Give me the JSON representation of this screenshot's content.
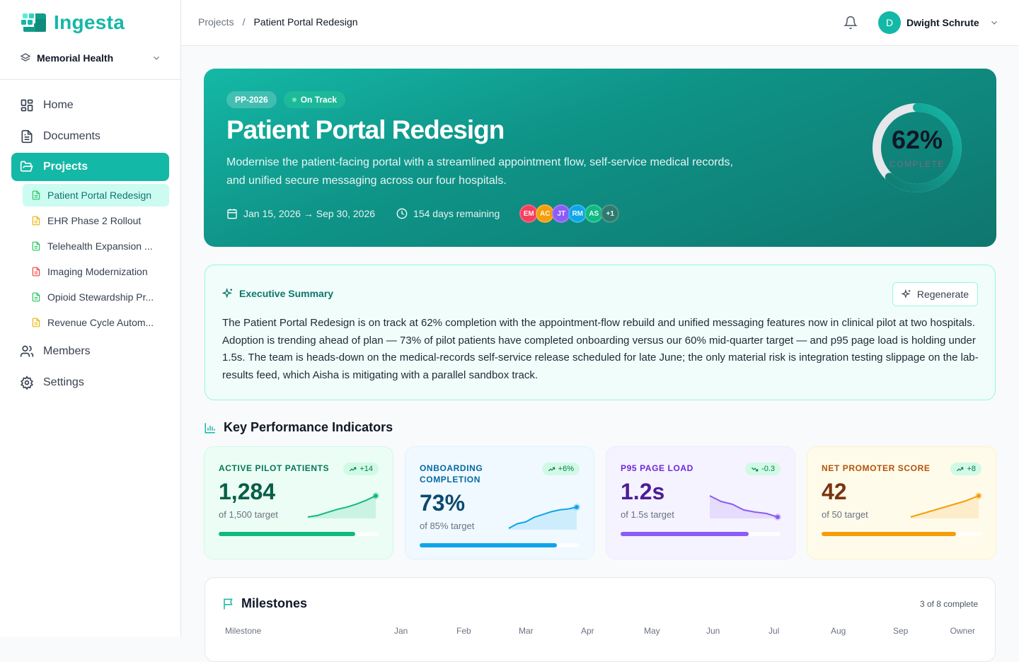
{
  "app": {
    "name": "Ingesta",
    "org": "Memorial Health"
  },
  "nav": {
    "home": "Home",
    "documents": "Documents",
    "projects": "Projects",
    "members": "Members",
    "settings": "Settings",
    "projects_list": [
      {
        "label": "Patient Portal Redesign",
        "color": "#22c55e",
        "active": true
      },
      {
        "label": "EHR Phase 2 Rollout",
        "color": "#eab308"
      },
      {
        "label": "Telehealth Expansion ...",
        "color": "#22c55e"
      },
      {
        "label": "Imaging Modernization",
        "color": "#ef4444"
      },
      {
        "label": "Opioid Stewardship Pr...",
        "color": "#22c55e"
      },
      {
        "label": "Revenue Cycle Autom...",
        "color": "#eab308"
      }
    ]
  },
  "breadcrumb": {
    "root": "Projects",
    "sep": "/",
    "current": "Patient Portal Redesign"
  },
  "user": {
    "initial": "D",
    "name": "Dwight Schrute"
  },
  "hero": {
    "code": "PP-2026",
    "status": "On Track",
    "title": "Patient Portal Redesign",
    "description": "Modernise the patient-facing portal with a streamlined appointment flow, self-service medical records, and unified secure messaging across our four hospitals.",
    "dates": "Jan 15, 2026 → Sep 30, 2026",
    "remaining": "154 days remaining",
    "progress": 62,
    "progress_label": "62%",
    "complete_label": "COMPLETE",
    "members": [
      {
        "i": "EM",
        "c": "#f43f5e"
      },
      {
        "i": "AC",
        "c": "#f59e0b"
      },
      {
        "i": "JT",
        "c": "#8b5cf6"
      },
      {
        "i": "RM",
        "c": "#0ea5e9"
      },
      {
        "i": "AS",
        "c": "#10b981"
      },
      {
        "i": "+1",
        "c": "#2f7a6e"
      }
    ]
  },
  "summary": {
    "title": "Executive Summary",
    "regenerate": "Regenerate",
    "text": "The Patient Portal Redesign is on track at 62% completion with the appointment-flow rebuild and unified messaging features now in clinical pilot at two hospitals. Adoption is trending ahead of plan — 73% of pilot patients have completed onboarding versus our 60% mid-quarter target — and p95 page load is holding under 1.5s. The team is heads-down on the medical-records self-service release scheduled for late June; the only material risk is integration testing slippage on the lab-results feed, which Aisha is mitigating with a parallel sandbox track."
  },
  "kpi_title": "Key Performance Indicators",
  "kpis": [
    {
      "label": "ACTIVE PILOT PATIENTS",
      "delta": "+14",
      "trend": "up",
      "value": "1,284",
      "target": "of 1,500 target",
      "progress": 0.856,
      "bg": "#ecfdf5",
      "border": "#d1fae5",
      "fg": "#065f46",
      "lc": "#047857",
      "accent": "#10b981",
      "spark": [
        2,
        4,
        8,
        12,
        15,
        19,
        24,
        30
      ]
    },
    {
      "label": "ONBOARDING COMPLETION",
      "delta": "+6%",
      "trend": "up",
      "value": "73%",
      "target": "of 85% target",
      "progress": 0.86,
      "bg": "#f0f9ff",
      "border": "#e0f2fe",
      "fg": "#0c4a6e",
      "lc": "#0369a1",
      "accent": "#0ea5e9",
      "spark": [
        50,
        55,
        57,
        62,
        65,
        68,
        70,
        71,
        73
      ]
    },
    {
      "label": "P95 PAGE LOAD",
      "delta": "-0.3",
      "trend": "down",
      "value": "1.2s",
      "target": "of 1.5s target",
      "progress": 0.8,
      "bg": "#f5f3ff",
      "border": "#ede9fe",
      "fg": "#4c1d95",
      "lc": "#6d28d9",
      "accent": "#8b5cf6",
      "spark": [
        1.5,
        1.42,
        1.38,
        1.3,
        1.27,
        1.25,
        1.2
      ]
    },
    {
      "label": "NET PROMOTER SCORE",
      "delta": "+8",
      "trend": "up",
      "value": "42",
      "target": "of 50 target",
      "progress": 0.84,
      "bg": "#fffbeb",
      "border": "#fef3c7",
      "fg": "#78350f",
      "lc": "#b45309",
      "accent": "#f59e0b",
      "spark": [
        34,
        35.5,
        37,
        38.5,
        40,
        42
      ]
    }
  ],
  "milestones": {
    "title": "Milestones",
    "count": "3 of 8 complete",
    "columns": [
      "Milestone",
      "Jan",
      "Feb",
      "Mar",
      "Apr",
      "May",
      "Jun",
      "Jul",
      "Aug",
      "Sep",
      "Owner"
    ]
  }
}
